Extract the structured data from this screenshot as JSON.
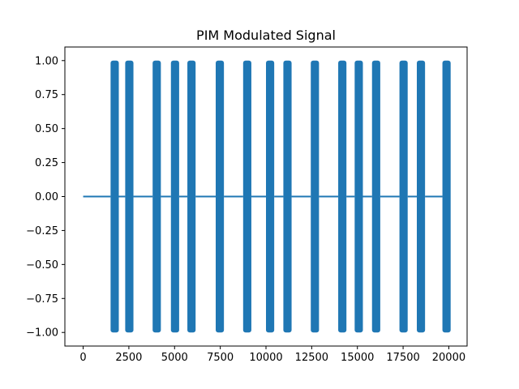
{
  "chart_data": {
    "type": "line",
    "title": "PIM Modulated Signal",
    "xlabel": "",
    "ylabel": "",
    "xlim": [
      -1000,
      21000
    ],
    "ylim": [
      -1.1,
      1.1
    ],
    "x_ticks": [
      0,
      2500,
      5000,
      7500,
      10000,
      12500,
      15000,
      17500,
      20000
    ],
    "x_tick_labels": [
      "0",
      "2500",
      "5000",
      "7500",
      "10000",
      "12500",
      "15000",
      "17500",
      "20000"
    ],
    "y_ticks": [
      1.0,
      0.75,
      0.5,
      0.25,
      0.0,
      -0.25,
      -0.5,
      -0.75,
      -1.0
    ],
    "y_tick_labels": [
      "1.00",
      "0.75",
      "0.50",
      "0.25",
      "0.00",
      "−0.25",
      "−0.50",
      "−0.75",
      "−1.00"
    ],
    "grid": false,
    "series_color": "#1f77b4",
    "signal": {
      "x_range": [
        0,
        20000
      ],
      "baseline": 0,
      "amplitude": 1.0,
      "pulses": [
        {
          "start": 1500,
          "end": 1950
        },
        {
          "start": 2300,
          "end": 2750
        },
        {
          "start": 3800,
          "end": 4250
        },
        {
          "start": 4800,
          "end": 5250
        },
        {
          "start": 5700,
          "end": 6150
        },
        {
          "start": 7250,
          "end": 7700
        },
        {
          "start": 8750,
          "end": 9200
        },
        {
          "start": 10000,
          "end": 10450
        },
        {
          "start": 10950,
          "end": 11400
        },
        {
          "start": 12450,
          "end": 12900
        },
        {
          "start": 13950,
          "end": 14400
        },
        {
          "start": 14850,
          "end": 15300
        },
        {
          "start": 15800,
          "end": 16250
        },
        {
          "start": 17300,
          "end": 17750
        },
        {
          "start": 18250,
          "end": 18700
        },
        {
          "start": 19650,
          "end": 20100
        }
      ]
    }
  }
}
